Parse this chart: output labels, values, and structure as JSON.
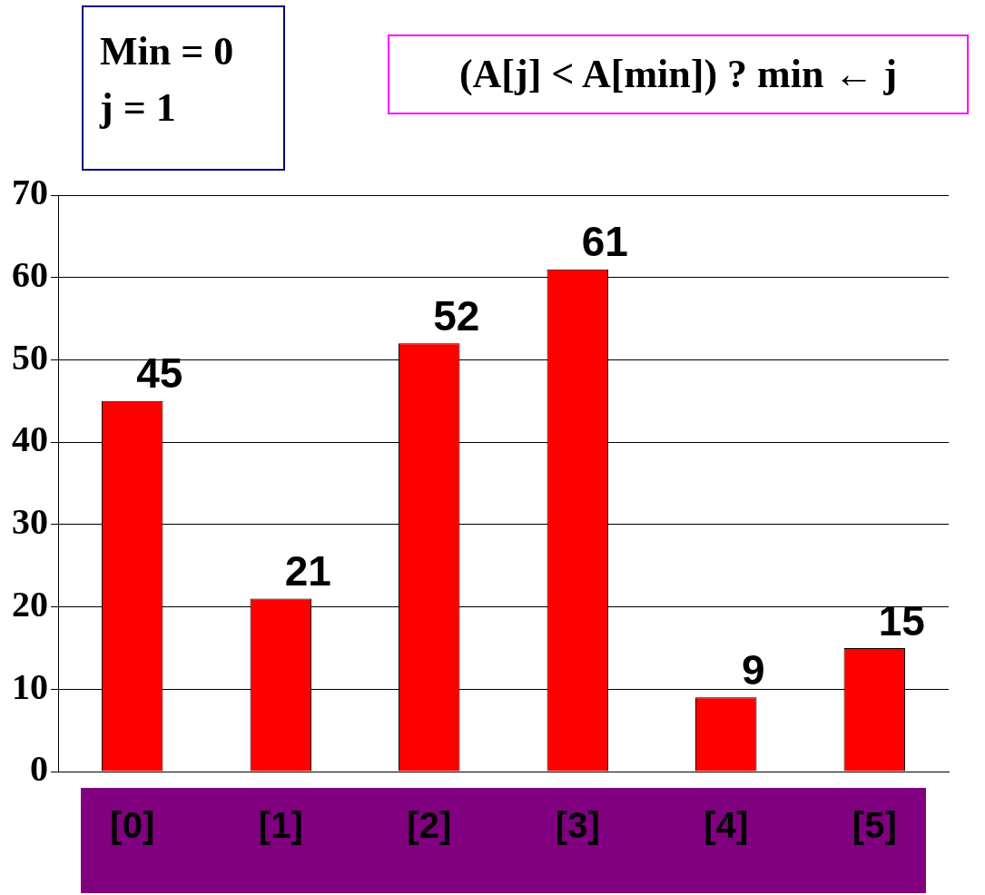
{
  "chart_data": {
    "type": "bar",
    "categories": [
      "[0]",
      "[1]",
      "[2]",
      "[3]",
      "[4]",
      "[5]"
    ],
    "values": [
      45,
      21,
      52,
      61,
      9,
      15
    ],
    "color": "#ff0000",
    "ylim": [
      0,
      70
    ],
    "yticks": [
      0,
      10,
      20,
      30,
      40,
      50,
      60,
      70
    ],
    "grid": "y",
    "data_labels": true,
    "annotations": [
      "Min = 0",
      "j = 1",
      "(A[j] < A[min]) ? min ← j"
    ]
  }
}
